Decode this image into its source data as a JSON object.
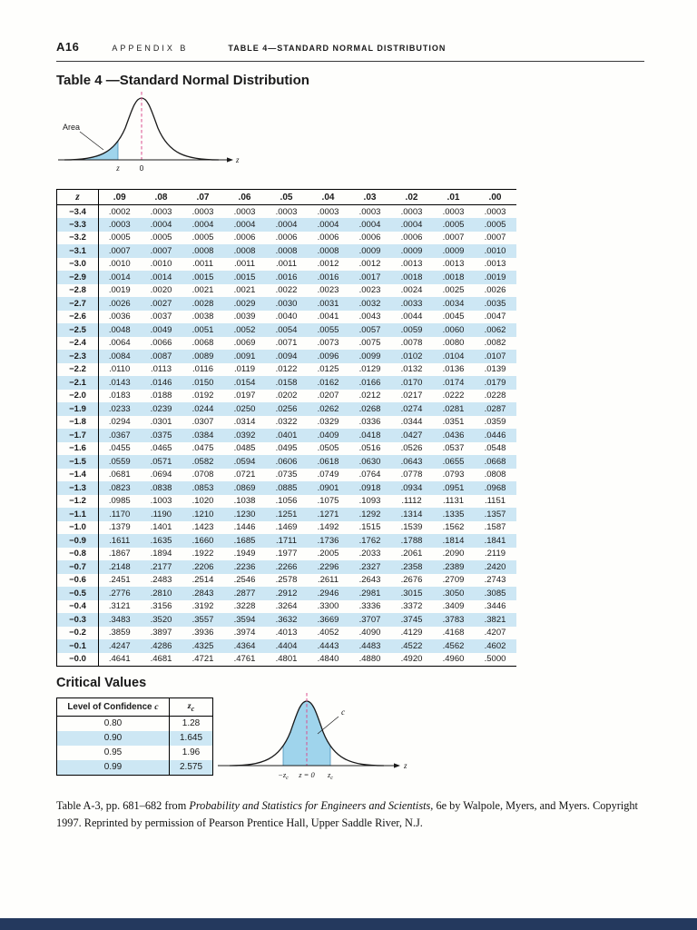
{
  "running_head": {
    "page_number": "A16",
    "appendix": "APPENDIX B",
    "table_title": "TABLE 4—STANDARD NORMAL DISTRIBUTION"
  },
  "title": "Table 4 —Standard Normal Distribution",
  "diagram_left_tail": {
    "area_label": "Area",
    "tick_z": "z",
    "tick_zero": "0",
    "axis_label": "z"
  },
  "ztable": {
    "columns": [
      "z",
      ".09",
      ".08",
      ".07",
      ".06",
      ".05",
      ".04",
      ".03",
      ".02",
      ".01",
      ".00"
    ],
    "rows": [
      [
        "−3.4",
        ".0002",
        ".0003",
        ".0003",
        ".0003",
        ".0003",
        ".0003",
        ".0003",
        ".0003",
        ".0003",
        ".0003"
      ],
      [
        "−3.3",
        ".0003",
        ".0004",
        ".0004",
        ".0004",
        ".0004",
        ".0004",
        ".0004",
        ".0004",
        ".0005",
        ".0005"
      ],
      [
        "−3.2",
        ".0005",
        ".0005",
        ".0005",
        ".0006",
        ".0006",
        ".0006",
        ".0006",
        ".0006",
        ".0007",
        ".0007"
      ],
      [
        "−3.1",
        ".0007",
        ".0007",
        ".0008",
        ".0008",
        ".0008",
        ".0008",
        ".0009",
        ".0009",
        ".0009",
        ".0010"
      ],
      [
        "−3.0",
        ".0010",
        ".0010",
        ".0011",
        ".0011",
        ".0011",
        ".0012",
        ".0012",
        ".0013",
        ".0013",
        ".0013"
      ],
      [
        "−2.9",
        ".0014",
        ".0014",
        ".0015",
        ".0015",
        ".0016",
        ".0016",
        ".0017",
        ".0018",
        ".0018",
        ".0019"
      ],
      [
        "−2.8",
        ".0019",
        ".0020",
        ".0021",
        ".0021",
        ".0022",
        ".0023",
        ".0023",
        ".0024",
        ".0025",
        ".0026"
      ],
      [
        "−2.7",
        ".0026",
        ".0027",
        ".0028",
        ".0029",
        ".0030",
        ".0031",
        ".0032",
        ".0033",
        ".0034",
        ".0035"
      ],
      [
        "−2.6",
        ".0036",
        ".0037",
        ".0038",
        ".0039",
        ".0040",
        ".0041",
        ".0043",
        ".0044",
        ".0045",
        ".0047"
      ],
      [
        "−2.5",
        ".0048",
        ".0049",
        ".0051",
        ".0052",
        ".0054",
        ".0055",
        ".0057",
        ".0059",
        ".0060",
        ".0062"
      ],
      [
        "−2.4",
        ".0064",
        ".0066",
        ".0068",
        ".0069",
        ".0071",
        ".0073",
        ".0075",
        ".0078",
        ".0080",
        ".0082"
      ],
      [
        "−2.3",
        ".0084",
        ".0087",
        ".0089",
        ".0091",
        ".0094",
        ".0096",
        ".0099",
        ".0102",
        ".0104",
        ".0107"
      ],
      [
        "−2.2",
        ".0110",
        ".0113",
        ".0116",
        ".0119",
        ".0122",
        ".0125",
        ".0129",
        ".0132",
        ".0136",
        ".0139"
      ],
      [
        "−2.1",
        ".0143",
        ".0146",
        ".0150",
        ".0154",
        ".0158",
        ".0162",
        ".0166",
        ".0170",
        ".0174",
        ".0179"
      ],
      [
        "−2.0",
        ".0183",
        ".0188",
        ".0192",
        ".0197",
        ".0202",
        ".0207",
        ".0212",
        ".0217",
        ".0222",
        ".0228"
      ],
      [
        "−1.9",
        ".0233",
        ".0239",
        ".0244",
        ".0250",
        ".0256",
        ".0262",
        ".0268",
        ".0274",
        ".0281",
        ".0287"
      ],
      [
        "−1.8",
        ".0294",
        ".0301",
        ".0307",
        ".0314",
        ".0322",
        ".0329",
        ".0336",
        ".0344",
        ".0351",
        ".0359"
      ],
      [
        "−1.7",
        ".0367",
        ".0375",
        ".0384",
        ".0392",
        ".0401",
        ".0409",
        ".0418",
        ".0427",
        ".0436",
        ".0446"
      ],
      [
        "−1.6",
        ".0455",
        ".0465",
        ".0475",
        ".0485",
        ".0495",
        ".0505",
        ".0516",
        ".0526",
        ".0537",
        ".0548"
      ],
      [
        "−1.5",
        ".0559",
        ".0571",
        ".0582",
        ".0594",
        ".0606",
        ".0618",
        ".0630",
        ".0643",
        ".0655",
        ".0668"
      ],
      [
        "−1.4",
        ".0681",
        ".0694",
        ".0708",
        ".0721",
        ".0735",
        ".0749",
        ".0764",
        ".0778",
        ".0793",
        ".0808"
      ],
      [
        "−1.3",
        ".0823",
        ".0838",
        ".0853",
        ".0869",
        ".0885",
        ".0901",
        ".0918",
        ".0934",
        ".0951",
        ".0968"
      ],
      [
        "−1.2",
        ".0985",
        ".1003",
        ".1020",
        ".1038",
        ".1056",
        ".1075",
        ".1093",
        ".1112",
        ".1131",
        ".1151"
      ],
      [
        "−1.1",
        ".1170",
        ".1190",
        ".1210",
        ".1230",
        ".1251",
        ".1271",
        ".1292",
        ".1314",
        ".1335",
        ".1357"
      ],
      [
        "−1.0",
        ".1379",
        ".1401",
        ".1423",
        ".1446",
        ".1469",
        ".1492",
        ".1515",
        ".1539",
        ".1562",
        ".1587"
      ],
      [
        "−0.9",
        ".1611",
        ".1635",
        ".1660",
        ".1685",
        ".1711",
        ".1736",
        ".1762",
        ".1788",
        ".1814",
        ".1841"
      ],
      [
        "−0.8",
        ".1867",
        ".1894",
        ".1922",
        ".1949",
        ".1977",
        ".2005",
        ".2033",
        ".2061",
        ".2090",
        ".2119"
      ],
      [
        "−0.7",
        ".2148",
        ".2177",
        ".2206",
        ".2236",
        ".2266",
        ".2296",
        ".2327",
        ".2358",
        ".2389",
        ".2420"
      ],
      [
        "−0.6",
        ".2451",
        ".2483",
        ".2514",
        ".2546",
        ".2578",
        ".2611",
        ".2643",
        ".2676",
        ".2709",
        ".2743"
      ],
      [
        "−0.5",
        ".2776",
        ".2810",
        ".2843",
        ".2877",
        ".2912",
        ".2946",
        ".2981",
        ".3015",
        ".3050",
        ".3085"
      ],
      [
        "−0.4",
        ".3121",
        ".3156",
        ".3192",
        ".3228",
        ".3264",
        ".3300",
        ".3336",
        ".3372",
        ".3409",
        ".3446"
      ],
      [
        "−0.3",
        ".3483",
        ".3520",
        ".3557",
        ".3594",
        ".3632",
        ".3669",
        ".3707",
        ".3745",
        ".3783",
        ".3821"
      ],
      [
        "−0.2",
        ".3859",
        ".3897",
        ".3936",
        ".3974",
        ".4013",
        ".4052",
        ".4090",
        ".4129",
        ".4168",
        ".4207"
      ],
      [
        "−0.1",
        ".4247",
        ".4286",
        ".4325",
        ".4364",
        ".4404",
        ".4443",
        ".4483",
        ".4522",
        ".4562",
        ".4602"
      ],
      [
        "−0.0",
        ".4641",
        ".4681",
        ".4721",
        ".4761",
        ".4801",
        ".4840",
        ".4880",
        ".4920",
        ".4960",
        ".5000"
      ]
    ]
  },
  "critical_values": {
    "title": "Critical Values",
    "col1_main": "Level of Confidence ",
    "col1_var": "c",
    "col2_main": "z",
    "col2_sub": "c",
    "rows": [
      [
        "0.80",
        "1.28"
      ],
      [
        "0.90",
        "1.645"
      ],
      [
        "0.95",
        "1.96"
      ],
      [
        "0.99",
        "2.575"
      ]
    ]
  },
  "diagram_critical": {
    "c_label": "c",
    "neg_zc_main": "−z",
    "zc_sub": "c",
    "center_label": "z = 0",
    "pos_zc_main": "z",
    "axis_label": "z"
  },
  "footnote": {
    "prefix": "Table A-3, pp. 681–682 from ",
    "book_title": "Probability and Statistics for Engineers and Scientists,",
    "suffix": " 6e by Walpole, Myers, and Myers. Copyright 1997. Reprinted by permission of Pearson Prentice Hall, Upper Saddle River, N.J."
  },
  "colors": {
    "row_stripe": "#cde7f4",
    "curve_fill": "#9fd4ec",
    "dashed_line": "#d94f8e",
    "bottom_bar": "#24395e"
  }
}
